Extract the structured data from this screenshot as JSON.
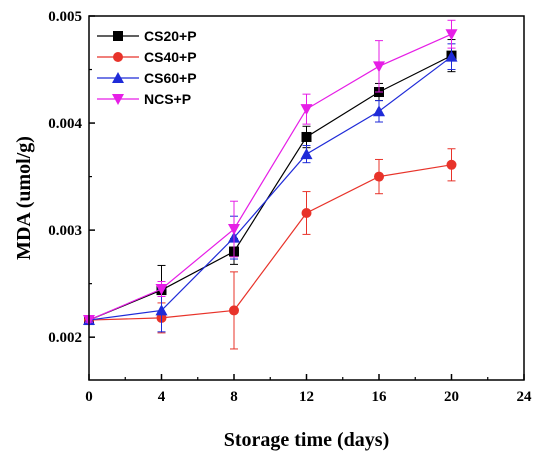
{
  "chart_data": {
    "type": "line",
    "xlabel": "Storage time (days)",
    "ylabel": "MDA (umol/g)",
    "xlim": [
      0,
      24
    ],
    "ylim": [
      0.0016,
      0.005
    ],
    "xticks": [
      0,
      4,
      8,
      12,
      16,
      20,
      24
    ],
    "yticks": [
      0.002,
      0.003,
      0.004,
      0.005
    ],
    "xtick_labels": [
      "0",
      "4",
      "8",
      "12",
      "16",
      "20",
      "24"
    ],
    "ytick_labels": [
      "0.002",
      "0.003",
      "0.004",
      "0.005"
    ],
    "grid": false,
    "legend_position": "top-left",
    "x": [
      0,
      4,
      8,
      12,
      16,
      20
    ],
    "series": [
      {
        "name": "CS20+P",
        "color": "#000000",
        "marker": "square",
        "values": [
          0.00216,
          0.00244,
          0.0028,
          0.00387,
          0.00429,
          0.00463
        ],
        "errors": [
          2e-05,
          0.00023,
          0.00012,
          0.0001,
          8e-05,
          0.00015
        ]
      },
      {
        "name": "CS40+P",
        "color": "#e8332a",
        "marker": "circle",
        "values": [
          0.00216,
          0.00218,
          0.00225,
          0.00316,
          0.0035,
          0.00361
        ],
        "errors": [
          2e-05,
          0.00014,
          0.00036,
          0.0002,
          0.00016,
          0.00015
        ]
      },
      {
        "name": "CS60+P",
        "color": "#1f2bd8",
        "marker": "triangle-up",
        "values": [
          0.00216,
          0.00225,
          0.00293,
          0.00371,
          0.00411,
          0.00462
        ],
        "errors": [
          2e-05,
          0.0002,
          0.0002,
          8e-05,
          0.0001,
          0.00012
        ]
      },
      {
        "name": "NCS+P",
        "color": "#e61ee6",
        "marker": "triangle-down",
        "values": [
          0.00216,
          0.00245,
          0.00301,
          0.00413,
          0.00453,
          0.00483
        ],
        "errors": [
          2e-05,
          7e-05,
          0.00026,
          0.00014,
          0.00024,
          0.00013
        ]
      }
    ]
  }
}
